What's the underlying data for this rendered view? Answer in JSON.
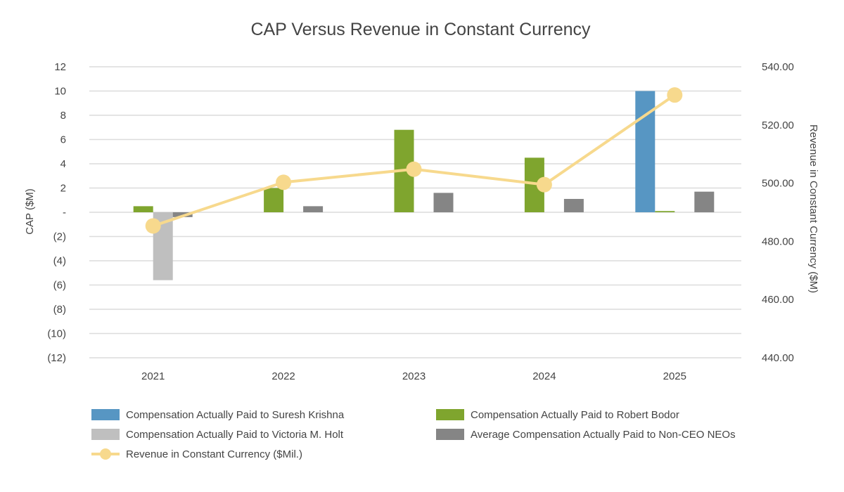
{
  "chart_data": {
    "type": "bar",
    "title": "CAP Versus Revenue in Constant Currency",
    "ylabel": "CAP ($M)",
    "y2label": "Revenue in Constant Currency ($M)",
    "categories": [
      "2021",
      "2022",
      "2023",
      "2024",
      "2025"
    ],
    "ylim": [
      -12,
      12
    ],
    "y_ticks": [
      12,
      10,
      8,
      6,
      4,
      2,
      0,
      -2,
      -4,
      -6,
      -8,
      -10,
      -12
    ],
    "y_tick_labels": [
      "12",
      "10",
      "8",
      "6",
      "4",
      "2",
      "-",
      "(2)",
      "(4)",
      "(6)",
      "(8)",
      "(10)",
      "(12)"
    ],
    "y2lim": [
      440,
      540
    ],
    "y2_ticks": [
      540,
      520,
      500,
      480,
      460,
      440
    ],
    "y2_tick_labels": [
      "540.00",
      "520.00",
      "500.00",
      "480.00",
      "460.00",
      "440.00"
    ],
    "grid": true,
    "legend_position": "bottom",
    "series": [
      {
        "name": "Compensation Actually Paid to Suresh Krishna",
        "type": "bar",
        "color": "#5796c3",
        "values": [
          null,
          null,
          null,
          null,
          10.0
        ]
      },
      {
        "name": "Compensation Actually Paid to Robert Bodor",
        "type": "bar",
        "color": "#7fa52e",
        "values": [
          0.5,
          2.0,
          6.8,
          4.5,
          0.1
        ]
      },
      {
        "name": "Compensation Actually Paid to Victoria M. Holt",
        "type": "bar",
        "color": "#bfbfbf",
        "values": [
          -5.6,
          null,
          null,
          null,
          null
        ]
      },
      {
        "name": "Average Compensation Actually Paid to Non-CEO NEOs",
        "type": "bar",
        "color": "#858585",
        "values": [
          -0.4,
          0.5,
          1.6,
          1.1,
          1.7
        ]
      },
      {
        "name": "Revenue in Constant Currency ($Mil.)",
        "type": "line",
        "axis": "y2",
        "color": "#f7d98d",
        "values": [
          485.3,
          500.3,
          504.8,
          499.5,
          530.3
        ]
      }
    ],
    "legend_order": [
      0,
      1,
      2,
      3,
      4
    ]
  }
}
